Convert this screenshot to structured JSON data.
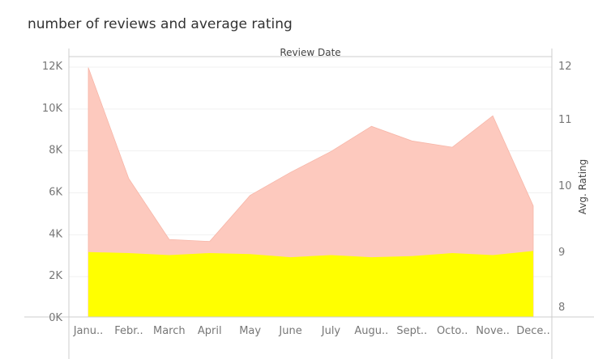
{
  "chart_data": {
    "type": "area",
    "title": "number of reviews and average rating",
    "header": "Review Date",
    "categories": [
      "Janu..",
      "Febr..",
      "March",
      "April",
      "May",
      "June",
      "July",
      "Augu..",
      "Sept..",
      "Octo..",
      "Nove..",
      "Dece.."
    ],
    "left_axis": {
      "label": "",
      "range": [
        0,
        12000
      ],
      "ticks": [
        0,
        2000,
        4000,
        6000,
        8000,
        10000,
        12000
      ],
      "tick_labels": [
        "0K",
        "2K",
        "4K",
        "6K",
        "8K",
        "10K",
        "12K"
      ]
    },
    "right_axis": {
      "label": "Avg. Rating",
      "ticks": [
        8,
        9,
        10,
        11,
        12
      ],
      "tick_labels": [
        "8",
        "9",
        "10",
        "11",
        "12"
      ]
    },
    "grid": true,
    "series": [
      {
        "axis": "left",
        "color": "#fdc9be",
        "values": [
          11900,
          6600,
          3700,
          3600,
          5800,
          6900,
          7900,
          9100,
          8400,
          8100,
          9600,
          5300
        ]
      },
      {
        "axis": "left",
        "color": "#ffff00",
        "values": [
          3100,
          3050,
          2950,
          3050,
          3000,
          2850,
          2950,
          2850,
          2900,
          3050,
          2950,
          3150
        ]
      }
    ]
  }
}
